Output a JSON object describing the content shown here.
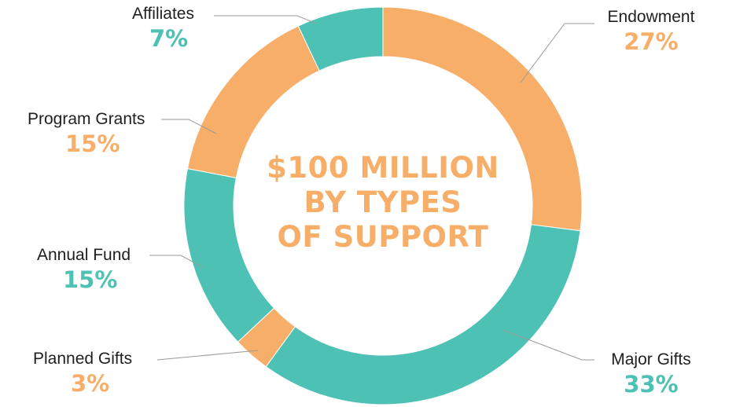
{
  "chart_data": {
    "type": "pie",
    "title_lines": [
      "$100 MILLION",
      "BY TYPES",
      "OF SUPPORT"
    ],
    "slices": [
      {
        "name": "Endowment",
        "value": 27,
        "label": "27%",
        "color": "#F7AE69"
      },
      {
        "name": "Major Gifts",
        "value": 33,
        "label": "33%",
        "color": "#4DC2B4"
      },
      {
        "name": "Planned Gifts",
        "value": 3,
        "label": "3%",
        "color": "#F7AE69"
      },
      {
        "name": "Annual Fund",
        "value": 15,
        "label": "15%",
        "color": "#4DC2B4"
      },
      {
        "name": "Program Grants",
        "value": 15,
        "label": "15%",
        "color": "#F7AE69"
      },
      {
        "name": "Affiliates",
        "value": 7,
        "label": "7%",
        "color": "#4DC2B4"
      }
    ],
    "legend": "none"
  },
  "colors": {
    "orange": "#F7AE69",
    "teal": "#4DC2B4",
    "title": "#F7AE69",
    "leader": "#9a9a9a"
  }
}
